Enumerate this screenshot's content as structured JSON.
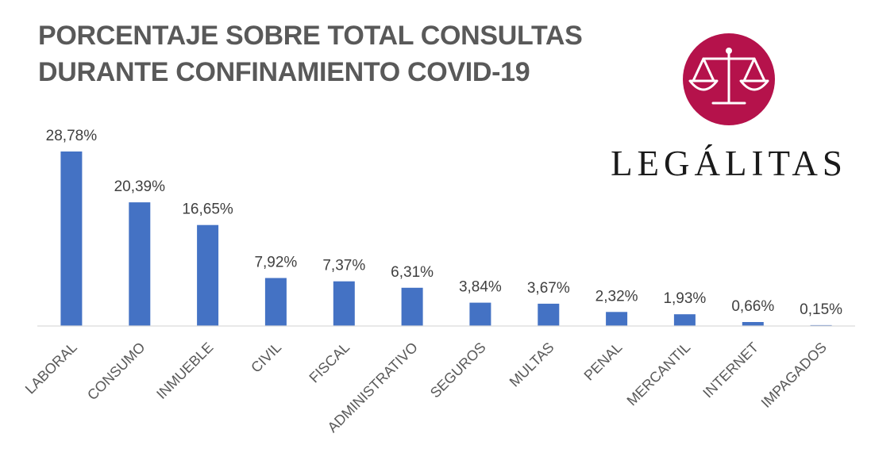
{
  "header": {
    "title_line1": "PORCENTAJE SOBRE TOTAL CONSULTAS",
    "title_line2": "DURANTE CONFINAMIENTO COVID-19"
  },
  "logo": {
    "brand_name": "LEGÁLITAS",
    "icon": "scales-of-justice-icon",
    "circle_color": "#B5124B"
  },
  "chart_data": {
    "type": "bar",
    "title": "PORCENTAJE SOBRE TOTAL CONSULTAS DURANTE CONFINAMIENTO COVID-19",
    "categories": [
      "LABORAL",
      "CONSUMO",
      "INMUEBLE",
      "CIVIL",
      "FISCAL",
      "ADMINISTRATIVO",
      "SEGUROS",
      "MULTAS",
      "PENAL",
      "MERCANTIL",
      "INTERNET",
      "IMPAGADOS"
    ],
    "values": [
      28.78,
      20.39,
      16.65,
      7.92,
      7.37,
      6.31,
      3.84,
      3.67,
      2.32,
      1.93,
      0.66,
      0.15
    ],
    "data_labels": [
      "28,78%",
      "20,39%",
      "16,65%",
      "7,92%",
      "7,37%",
      "6,31%",
      "3,84%",
      "3,67%",
      "2,32%",
      "1,93%",
      "0,66%",
      "0,15%"
    ],
    "unit": "%",
    "bar_color": "#4472C4",
    "grid": false,
    "legend": "none",
    "value_axis": "hidden",
    "ylim": [
      0,
      28.78
    ]
  }
}
